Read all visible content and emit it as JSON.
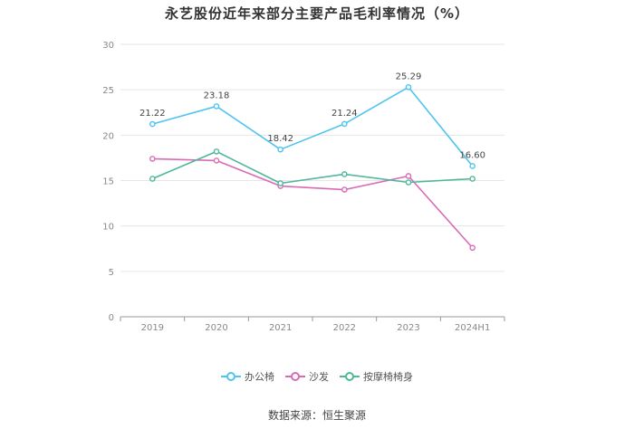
{
  "title": "永艺股份近年来部分主要产品毛利率情况（%）",
  "source": "数据来源：恒生聚源",
  "chart_data": {
    "type": "line",
    "title": "永艺股份近年来部分主要产品毛利率情况（%）",
    "categories": [
      "2019",
      "2020",
      "2021",
      "2022",
      "2023",
      "2024H1"
    ],
    "ylim": [
      0,
      30
    ],
    "yticks": [
      "0",
      "5",
      "10",
      "15",
      "20",
      "25",
      "30"
    ],
    "grid": true,
    "legend_position": "bottom",
    "series": [
      {
        "name": "办公椅",
        "color": "#4ec4f0",
        "values": [
          21.22,
          23.18,
          18.42,
          21.24,
          25.29,
          16.6
        ],
        "labels": [
          "21.22",
          "23.18",
          "18.42",
          "21.24",
          "25.29",
          "16.60"
        ],
        "show_labels": true
      },
      {
        "name": "沙发",
        "color": "#d96bb5",
        "values": [
          17.4,
          17.2,
          14.4,
          14.0,
          15.5,
          7.6
        ],
        "show_labels": false
      },
      {
        "name": "按摩椅椅身",
        "color": "#4fb89a",
        "values": [
          15.2,
          18.2,
          14.7,
          15.7,
          14.8,
          15.2
        ],
        "show_labels": false
      }
    ]
  }
}
